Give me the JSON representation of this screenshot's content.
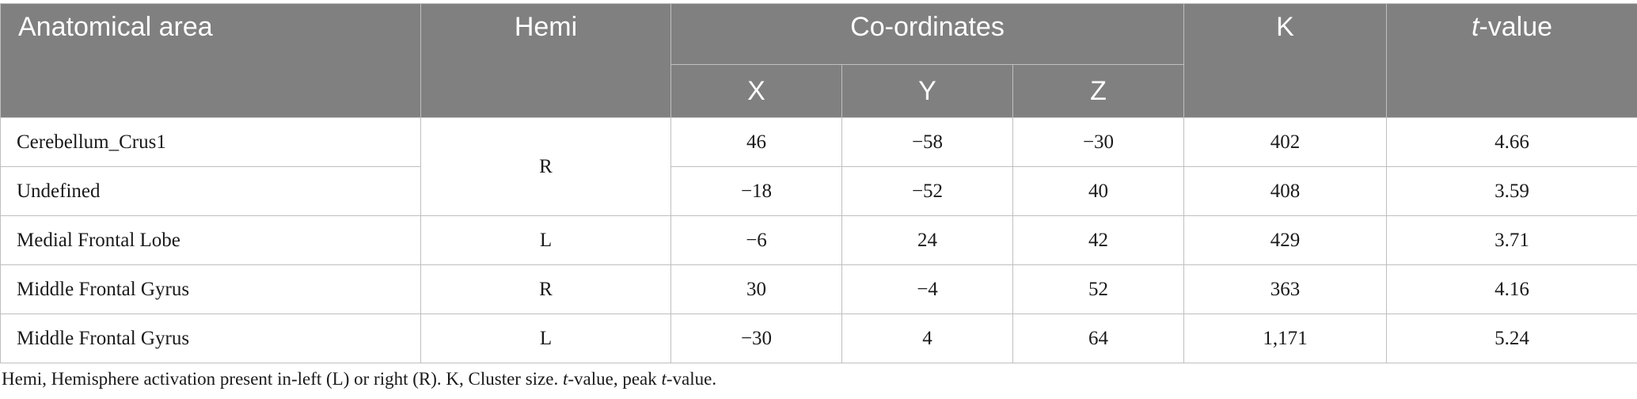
{
  "table": {
    "headers": {
      "area": "Anatomical area",
      "hemi": "Hemi",
      "coords": "Co-ordinates",
      "x": "X",
      "y": "Y",
      "z": "Z",
      "k": "K",
      "t_prefix": "t",
      "t_suffix": "-value"
    },
    "rows": [
      {
        "area": "Cerebellum_Crus1",
        "hemi": "R",
        "x": "46",
        "y": "−58",
        "z": "−30",
        "k": "402",
        "t": "4.66"
      },
      {
        "area": "Undefined",
        "hemi": "",
        "x": "−18",
        "y": "−52",
        "z": "40",
        "k": "408",
        "t": "3.59"
      },
      {
        "area": "Medial Frontal Lobe",
        "hemi": "L",
        "x": "−6",
        "y": "24",
        "z": "42",
        "k": "429",
        "t": "3.71"
      },
      {
        "area": "Middle Frontal Gyrus",
        "hemi": "R",
        "x": "30",
        "y": "−4",
        "z": "52",
        "k": "363",
        "t": "4.16"
      },
      {
        "area": "Middle Frontal Gyrus",
        "hemi": "L",
        "x": "−30",
        "y": "4",
        "z": "64",
        "k": "1,171",
        "t": "5.24"
      }
    ]
  },
  "footnote": {
    "part1": "Hemi, Hemisphere activation present in-left (L) or right (R). K, Cluster size. ",
    "t1": "t",
    "part2": "-value, peak ",
    "t2": "t",
    "part3": "-value."
  }
}
